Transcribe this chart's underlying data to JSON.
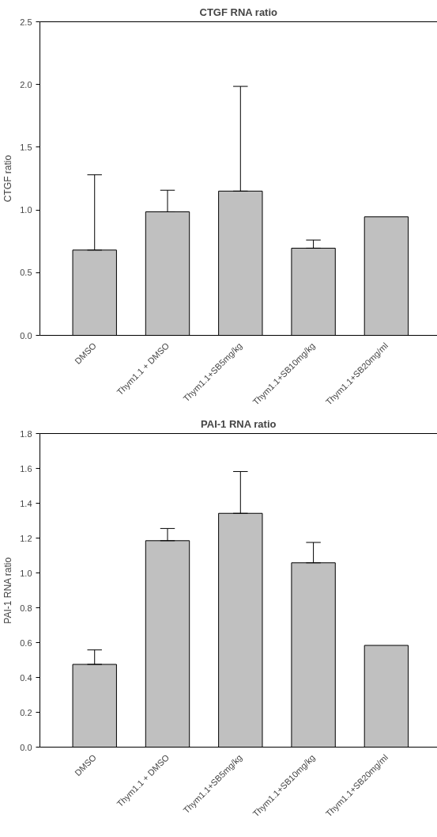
{
  "chart_data": [
    {
      "type": "bar",
      "title": "CTGF RNA ratio",
      "ylabel": "CTGF ratio",
      "categories": [
        "DMSO",
        "Thym1.1 + DMSO",
        "Thym1.1+SB5mg/kg",
        "Thym1.1+SB10mg/kg",
        "Thym1.1+SB20mg/ml"
      ],
      "values": [
        0.68,
        0.985,
        1.15,
        0.695,
        0.945
      ],
      "errors": [
        [
          0.68,
          1.28
        ],
        [
          0.985,
          1.157
        ],
        [
          1.15,
          1.985
        ],
        [
          0.695,
          0.76
        ],
        null
      ],
      "color": "#c0c0c0",
      "ylim": [
        0,
        2.5
      ],
      "yticks": [
        {
          "value": 0,
          "label": "0.0"
        },
        0.5,
        {
          "value": 1,
          "label": "1.0"
        },
        1.5,
        {
          "value": 2,
          "label": "2.0"
        },
        2.5
      ]
    },
    {
      "type": "bar",
      "title": "PAI-1 RNA ratio",
      "ylabel": "PAI-1 RNA ratio",
      "categories": [
        "DMSO",
        "Thym1.1 + DMSO",
        "Thym1.1+SB5mg/kg",
        "Thym1.1+SB10mg/kg",
        "Thym1.1+SB20mg/ml"
      ],
      "values": [
        0.475,
        1.185,
        1.342,
        1.058,
        0.584
      ],
      "errors": [
        [
          0.475,
          0.558
        ],
        [
          1.185,
          1.255
        ],
        [
          1.342,
          1.582
        ],
        [
          1.058,
          1.175
        ],
        null
      ],
      "color": "#c0c0c0",
      "ylim": [
        0,
        1.8
      ],
      "yticks": [
        {
          "value": 0,
          "label": "0.0"
        },
        0.2,
        0.4,
        0.6,
        0.8,
        {
          "value": 1,
          "label": "1.0"
        },
        1.2,
        1.4,
        1.6,
        1.8
      ]
    }
  ]
}
